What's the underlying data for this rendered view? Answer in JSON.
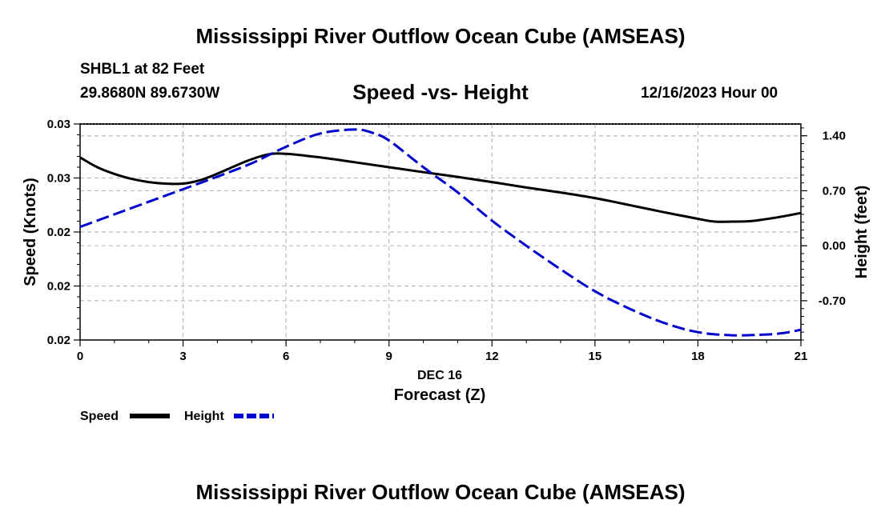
{
  "header": {
    "title": "Mississippi River Outflow Ocean Cube (AMSEAS)",
    "station": "SHBL1 at 82 Feet",
    "coords": "29.8680N  89.6730W",
    "datetime": "12/16/2023 Hour 00"
  },
  "footer": {
    "title": "Mississippi River Outflow Ocean Cube (AMSEAS)"
  },
  "colors": {
    "speed": "#000000",
    "height": "#0000cc",
    "grid": "#bbbbbb"
  },
  "chart_data": {
    "type": "line",
    "title": "Speed -vs- Height",
    "xlabel": "Forecast (Z)",
    "xlabel_date": "DEC 16",
    "ylabel": "Speed (Knots)",
    "y2label": "Height (feet)",
    "xlim": [
      0,
      21
    ],
    "ylim": [
      0.02,
      0.03
    ],
    "y2lim": [
      -1.2,
      1.55
    ],
    "x_ticks": [
      0,
      3,
      6,
      9,
      12,
      15,
      18,
      21
    ],
    "x_tick_labels": [
      "0",
      "3",
      "6",
      "9",
      "12",
      "15",
      "18",
      "21"
    ],
    "y_ticks": [
      0.02,
      0.0225,
      0.025,
      0.0275,
      0.03
    ],
    "y_tick_labels": [
      "0.02",
      "0.02",
      "0.02",
      "0.03",
      "0.03"
    ],
    "y2_ticks": [
      -0.7,
      0.0,
      0.7,
      1.4
    ],
    "y2_tick_labels": [
      "-0.70",
      "0.00",
      "0.70",
      "1.40"
    ],
    "legend": [
      {
        "name": "Speed",
        "style": "solid"
      },
      {
        "name": "Height",
        "style": "dashed"
      }
    ],
    "series": [
      {
        "name": "Speed",
        "axis": "left",
        "x": [
          0,
          0.5,
          1,
          1.5,
          2,
          2.5,
          3,
          3.5,
          4,
          4.5,
          5,
          5.5,
          6,
          7,
          8,
          9,
          10,
          11,
          12,
          13,
          14,
          15,
          16,
          17,
          18,
          18.5,
          19,
          19.5,
          20,
          20.5,
          21
        ],
        "values": [
          0.02845,
          0.028,
          0.02769,
          0.02746,
          0.02731,
          0.02724,
          0.02724,
          0.0274,
          0.0277,
          0.02805,
          0.02837,
          0.0286,
          0.02862,
          0.02845,
          0.02823,
          0.028,
          0.02777,
          0.02755,
          0.02731,
          0.02706,
          0.02683,
          0.02657,
          0.02625,
          0.02592,
          0.02561,
          0.02548,
          0.02548,
          0.0255,
          0.0256,
          0.02573,
          0.02588
        ]
      },
      {
        "name": "Height",
        "axis": "right",
        "x": [
          0,
          1,
          2,
          3,
          4,
          5,
          6,
          7,
          8,
          8.5,
          9,
          10,
          11,
          12,
          13,
          14,
          15,
          16,
          17,
          18,
          19,
          20,
          20.5,
          21
        ],
        "values": [
          0.24,
          0.4,
          0.56,
          0.72,
          0.88,
          1.05,
          1.26,
          1.43,
          1.48,
          1.44,
          1.34,
          1.0,
          0.68,
          0.32,
          0.0,
          -0.3,
          -0.58,
          -0.8,
          -0.98,
          -1.1,
          -1.14,
          -1.13,
          -1.11,
          -1.07
        ]
      }
    ]
  }
}
